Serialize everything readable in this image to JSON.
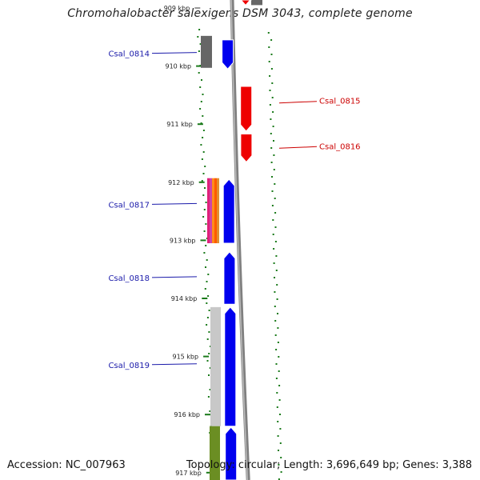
{
  "title": "Chromohalobacter salexigens DSM 3043, complete genome",
  "footer": {
    "accession": "Accession: NC_007963",
    "summary": "Topology: circular; Length: 3,696,649 bp; Genes: 3,388"
  },
  "colors": {
    "blue": "#0000ee",
    "red": "#ee0000",
    "dark_gray": "#666666",
    "light_gray": "#c8c8c8",
    "olive": "#6b8e23",
    "tick_green": "#1a7a1a",
    "label_blue": "#1a1aaa",
    "label_red": "#cc0000",
    "backbone": "#808080"
  },
  "ruler": {
    "unit": "kbp",
    "ticks": [
      {
        "kbp": 909,
        "label": "909 kbp"
      },
      {
        "kbp": 910,
        "label": "910 kbp"
      },
      {
        "kbp": 911,
        "label": "911 kbp"
      },
      {
        "kbp": 912,
        "label": "912 kbp"
      },
      {
        "kbp": 913,
        "label": "913 kbp"
      },
      {
        "kbp": 914,
        "label": "914 kbp"
      },
      {
        "kbp": 915,
        "label": "915 kbp"
      },
      {
        "kbp": 916,
        "label": "916 kbp"
      },
      {
        "kbp": 917,
        "label": "917 kbp"
      }
    ]
  },
  "genes": [
    {
      "id": "Csal_0814",
      "label": "Csal_0814",
      "strand": "+",
      "start": 909.55,
      "end": 910.05,
      "color": "blue",
      "side": "left",
      "label_at": 909.78
    },
    {
      "id": "Csal_0815",
      "label": "Csal_0815",
      "strand": "+",
      "start": 910.35,
      "end": 911.12,
      "color": "red",
      "side": "right",
      "label_at": 910.58
    },
    {
      "id": "Csal_0816",
      "label": "Csal_0816",
      "strand": "+",
      "start": 911.17,
      "end": 911.65,
      "color": "red",
      "side": "right",
      "label_at": 911.36
    },
    {
      "id": "Csal_0817",
      "label": "Csal_0817",
      "strand": "-",
      "start": 911.95,
      "end": 913.05,
      "color": "blue",
      "side": "left",
      "label_at": 912.38
    },
    {
      "id": "Csal_0818",
      "label": "Csal_0818",
      "strand": "-",
      "start": 913.2,
      "end": 914.1,
      "color": "blue",
      "side": "left",
      "label_at": 913.64
    },
    {
      "id": "Csal_0819",
      "label": "Csal_0819",
      "strand": "-",
      "start": 914.15,
      "end": 916.2,
      "color": "blue",
      "side": "left",
      "label_at": 915.14
    },
    {
      "id": "Csal_0820",
      "label": "",
      "strand": "-",
      "start": 916.22,
      "end": 917.2,
      "color": "blue",
      "side": "left",
      "label_at": 0
    },
    {
      "id": "Csal_0813",
      "label": "",
      "strand": "+",
      "start": 908.6,
      "end": 908.95,
      "color": "red",
      "side": "right",
      "label_at": 0
    }
  ]
}
